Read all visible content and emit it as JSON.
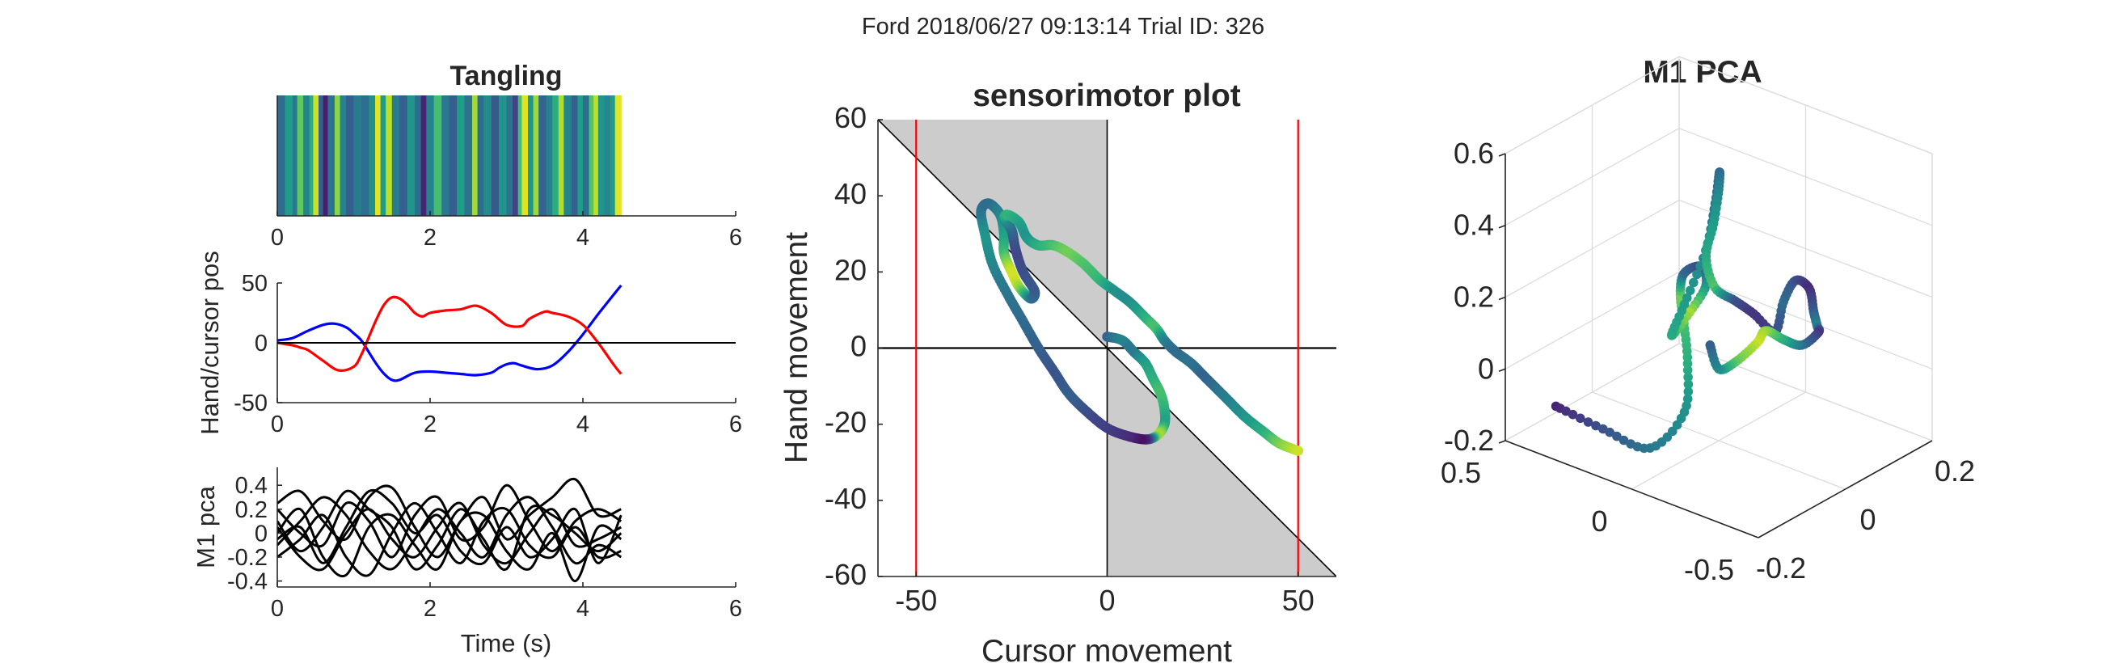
{
  "figure": {
    "suptitle": "Ford 2018/06/27 09:13:14 Trial ID: 326"
  },
  "chart_data": [
    {
      "id": "tangling",
      "type": "heatmap",
      "title": "Tangling",
      "xlabel": "",
      "ylabel": "",
      "xlim": [
        0,
        6
      ],
      "x_ticks": [
        "0",
        "2",
        "4",
        "6"
      ],
      "data_end": 4.5,
      "stripes": [
        {
          "x": 0.0,
          "v": 0.35
        },
        {
          "x": 0.1,
          "v": 0.55
        },
        {
          "x": 0.2,
          "v": 0.4
        },
        {
          "x": 0.26,
          "v": 0.75
        },
        {
          "x": 0.34,
          "v": 0.45
        },
        {
          "x": 0.42,
          "v": 0.62
        },
        {
          "x": 0.47,
          "v": 0.92
        },
        {
          "x": 0.54,
          "v": 0.3
        },
        {
          "x": 0.6,
          "v": 0.08
        },
        {
          "x": 0.66,
          "v": 0.38
        },
        {
          "x": 0.75,
          "v": 0.82
        },
        {
          "x": 0.82,
          "v": 0.45
        },
        {
          "x": 0.9,
          "v": 0.3
        },
        {
          "x": 1.0,
          "v": 0.42
        },
        {
          "x": 1.1,
          "v": 0.36
        },
        {
          "x": 1.2,
          "v": 0.5
        },
        {
          "x": 1.28,
          "v": 0.96
        },
        {
          "x": 1.35,
          "v": 0.55
        },
        {
          "x": 1.42,
          "v": 0.9
        },
        {
          "x": 1.5,
          "v": 0.42
        },
        {
          "x": 1.6,
          "v": 0.3
        },
        {
          "x": 1.7,
          "v": 0.52
        },
        {
          "x": 1.8,
          "v": 0.35
        },
        {
          "x": 1.88,
          "v": 0.1
        },
        {
          "x": 1.95,
          "v": 0.45
        },
        {
          "x": 2.05,
          "v": 0.7
        },
        {
          "x": 2.15,
          "v": 0.4
        },
        {
          "x": 2.25,
          "v": 0.3
        },
        {
          "x": 2.35,
          "v": 0.55
        },
        {
          "x": 2.45,
          "v": 0.38
        },
        {
          "x": 2.55,
          "v": 0.86
        },
        {
          "x": 2.62,
          "v": 0.35
        },
        {
          "x": 2.7,
          "v": 0.48
        },
        {
          "x": 2.8,
          "v": 0.28
        },
        {
          "x": 2.9,
          "v": 0.52
        },
        {
          "x": 3.0,
          "v": 0.38
        },
        {
          "x": 3.08,
          "v": 0.2
        },
        {
          "x": 3.15,
          "v": 0.7
        },
        {
          "x": 3.2,
          "v": 0.95
        },
        {
          "x": 3.28,
          "v": 0.52
        },
        {
          "x": 3.35,
          "v": 0.85
        },
        {
          "x": 3.42,
          "v": 0.32
        },
        {
          "x": 3.52,
          "v": 0.45
        },
        {
          "x": 3.6,
          "v": 0.62
        },
        {
          "x": 3.68,
          "v": 0.88
        },
        {
          "x": 3.75,
          "v": 0.45
        },
        {
          "x": 3.85,
          "v": 0.3
        },
        {
          "x": 3.93,
          "v": 0.55
        },
        {
          "x": 4.0,
          "v": 0.36
        },
        {
          "x": 4.08,
          "v": 0.72
        },
        {
          "x": 4.14,
          "v": 0.9
        },
        {
          "x": 4.2,
          "v": 0.52
        },
        {
          "x": 4.28,
          "v": 0.46
        },
        {
          "x": 4.36,
          "v": 0.55
        },
        {
          "x": 4.42,
          "v": 0.96
        }
      ]
    },
    {
      "id": "hand-cursor",
      "type": "line",
      "title": "",
      "xlabel": "",
      "ylabel": "Hand/cursor pos",
      "xlim": [
        0,
        6
      ],
      "ylim": [
        -50,
        50
      ],
      "x_ticks": [
        "0",
        "2",
        "4",
        "6"
      ],
      "y_ticks": [
        "-50",
        "0",
        "50"
      ],
      "series": [
        {
          "color": "#0000ff",
          "x": [
            0,
            0.2,
            0.4,
            0.6,
            0.75,
            0.9,
            1.0,
            1.1,
            1.2,
            1.3,
            1.4,
            1.5,
            1.6,
            1.8,
            2.0,
            2.2,
            2.4,
            2.6,
            2.8,
            2.9,
            3.0,
            3.1,
            3.2,
            3.4,
            3.6,
            3.8,
            4.0,
            4.2,
            4.4,
            4.5
          ],
          "y": [
            2,
            4,
            10,
            15,
            16,
            13,
            8,
            2,
            -8,
            -18,
            -26,
            -31,
            -31,
            -25,
            -24,
            -25,
            -26,
            -27,
            -25,
            -21,
            -18,
            -17,
            -19,
            -22,
            -19,
            -8,
            7,
            24,
            40,
            48
          ]
        },
        {
          "color": "#ff0000",
          "x": [
            0,
            0.2,
            0.3,
            0.4,
            0.6,
            0.8,
            1.0,
            1.1,
            1.2,
            1.3,
            1.4,
            1.5,
            1.6,
            1.7,
            1.8,
            1.9,
            2.0,
            2.2,
            2.4,
            2.6,
            2.8,
            3.0,
            3.2,
            3.3,
            3.5,
            3.6,
            3.8,
            4.0,
            4.2,
            4.4,
            4.5
          ],
          "y": [
            0,
            -2,
            -4,
            -6,
            -15,
            -23,
            -20,
            -10,
            5,
            20,
            32,
            38,
            37,
            32,
            25,
            22,
            25,
            27,
            28,
            31,
            25,
            15,
            14,
            20,
            26,
            25,
            22,
            15,
            0,
            -18,
            -26
          ]
        },
        {
          "color": "#000000",
          "x": [
            0,
            6
          ],
          "y": [
            0,
            0
          ]
        }
      ]
    },
    {
      "id": "m1-pca-traces",
      "type": "line",
      "title": "",
      "xlabel": "Time (s)",
      "ylabel": "M1 pca",
      "xlim": [
        0,
        6
      ],
      "ylim": [
        -0.45,
        0.55
      ],
      "x_ticks": [
        "0",
        "2",
        "4",
        "6"
      ],
      "y_ticks": [
        "-0.4",
        "-0.2",
        "0",
        "0.2",
        "0.4"
      ],
      "x": [
        0,
        0.3,
        0.6,
        0.9,
        1.2,
        1.5,
        1.8,
        2.1,
        2.4,
        2.7,
        3.0,
        3.3,
        3.6,
        3.9,
        4.2,
        4.5
      ],
      "series": [
        {
          "color": "#000000",
          "values": [
            0.25,
            0.35,
            0.1,
            -0.05,
            0.3,
            0.38,
            0.05,
            -0.2,
            0.1,
            0.3,
            -0.05,
            0.15,
            0.3,
            0.45,
            0.15,
            0.2
          ]
        },
        {
          "color": "#000000",
          "values": [
            0.05,
            -0.2,
            -0.3,
            0.0,
            0.2,
            -0.05,
            -0.2,
            0.05,
            0.25,
            -0.1,
            -0.25,
            0.0,
            0.2,
            -0.1,
            -0.05,
            0.05
          ]
        },
        {
          "color": "#000000",
          "values": [
            -0.1,
            0.1,
            0.3,
            0.15,
            -0.15,
            -0.3,
            -0.05,
            0.2,
            0.0,
            -0.2,
            0.15,
            0.3,
            0.05,
            -0.25,
            -0.1,
            -0.2
          ]
        },
        {
          "color": "#000000",
          "values": [
            0.2,
            0.0,
            -0.1,
            0.25,
            0.1,
            -0.2,
            0.15,
            0.3,
            -0.05,
            0.05,
            0.4,
            0.1,
            -0.15,
            0.1,
            0.2,
            0.1
          ]
        },
        {
          "color": "#000000",
          "values": [
            -0.2,
            -0.05,
            0.15,
            -0.2,
            -0.35,
            0.0,
            0.25,
            0.0,
            -0.25,
            0.1,
            0.2,
            -0.1,
            -0.2,
            0.05,
            -0.2,
            -0.15
          ]
        },
        {
          "color": "#000000",
          "values": [
            0.0,
            0.2,
            -0.2,
            -0.35,
            0.05,
            0.15,
            -0.1,
            -0.3,
            0.1,
            0.15,
            -0.15,
            -0.3,
            0.0,
            -0.4,
            0.05,
            -0.05
          ]
        },
        {
          "color": "#000000",
          "values": [
            0.1,
            -0.15,
            0.05,
            0.35,
            0.2,
            0.05,
            -0.3,
            -0.1,
            0.2,
            -0.05,
            -0.3,
            0.2,
            0.15,
            0.0,
            -0.15,
            0.0
          ]
        },
        {
          "color": "#000000",
          "values": [
            -0.05,
            0.05,
            -0.25,
            0.05,
            0.35,
            0.25,
            0.0,
            0.15,
            -0.15,
            -0.25,
            0.05,
            -0.2,
            -0.05,
            0.2,
            -0.25,
            0.15
          ]
        }
      ]
    },
    {
      "id": "sensorimotor",
      "type": "scatter",
      "title": "sensorimotor plot",
      "xlabel": "Cursor movement",
      "ylabel": "Hand movement",
      "xlim": [
        -60,
        60
      ],
      "ylim": [
        -60,
        60
      ],
      "x_ticks": [
        "-50",
        "0",
        "50"
      ],
      "y_ticks": [
        "-60",
        "-40",
        "-20",
        "0",
        "20",
        "40",
        "60"
      ],
      "shading": "gray",
      "vlines_red": [
        -50,
        50
      ],
      "trajectory": [
        {
          "x": 0,
          "y": 3,
          "v": 0.3
        },
        {
          "x": 4,
          "y": 2,
          "v": 0.45
        },
        {
          "x": 7,
          "y": -1,
          "v": 0.4
        },
        {
          "x": 10,
          "y": -4,
          "v": 0.55
        },
        {
          "x": 12,
          "y": -8,
          "v": 0.62
        },
        {
          "x": 14,
          "y": -12,
          "v": 0.7
        },
        {
          "x": 15,
          "y": -16,
          "v": 0.65
        },
        {
          "x": 15,
          "y": -20,
          "v": 0.58
        },
        {
          "x": 13,
          "y": -23,
          "v": 0.85
        },
        {
          "x": 10,
          "y": -24,
          "v": 0.1
        },
        {
          "x": 5,
          "y": -23,
          "v": 0.12
        },
        {
          "x": 0,
          "y": -21,
          "v": 0.18
        },
        {
          "x": -5,
          "y": -17,
          "v": 0.22
        },
        {
          "x": -10,
          "y": -12,
          "v": 0.3
        },
        {
          "x": -14,
          "y": -6,
          "v": 0.26
        },
        {
          "x": -18,
          "y": 0,
          "v": 0.3
        },
        {
          "x": -22,
          "y": 7,
          "v": 0.34
        },
        {
          "x": -26,
          "y": 14,
          "v": 0.38
        },
        {
          "x": -30,
          "y": 22,
          "v": 0.45
        },
        {
          "x": -32,
          "y": 30,
          "v": 0.52
        },
        {
          "x": -33,
          "y": 36,
          "v": 0.4
        },
        {
          "x": -31,
          "y": 38,
          "v": 0.35
        },
        {
          "x": -28,
          "y": 35,
          "v": 0.45
        },
        {
          "x": -27,
          "y": 30,
          "v": 0.55
        },
        {
          "x": -27,
          "y": 25,
          "v": 0.68
        },
        {
          "x": -25,
          "y": 20,
          "v": 0.92
        },
        {
          "x": -23,
          "y": 16,
          "v": 0.85
        },
        {
          "x": -20,
          "y": 13,
          "v": 0.42
        },
        {
          "x": -19,
          "y": 15,
          "v": 0.3
        },
        {
          "x": -22,
          "y": 20,
          "v": 0.25
        },
        {
          "x": -24,
          "y": 26,
          "v": 0.22
        },
        {
          "x": -25,
          "y": 31,
          "v": 0.32
        },
        {
          "x": -27,
          "y": 34,
          "v": 0.5
        },
        {
          "x": -26,
          "y": 35,
          "v": 0.65
        },
        {
          "x": -23,
          "y": 33,
          "v": 0.58
        },
        {
          "x": -21,
          "y": 29,
          "v": 0.52
        },
        {
          "x": -18,
          "y": 27,
          "v": 0.62
        },
        {
          "x": -14,
          "y": 27,
          "v": 0.7
        },
        {
          "x": -10,
          "y": 25,
          "v": 0.78
        },
        {
          "x": -6,
          "y": 22,
          "v": 0.72
        },
        {
          "x": -2,
          "y": 18,
          "v": 0.66
        },
        {
          "x": 2,
          "y": 15,
          "v": 0.52
        },
        {
          "x": 6,
          "y": 12,
          "v": 0.5
        },
        {
          "x": 10,
          "y": 8,
          "v": 0.62
        },
        {
          "x": 13,
          "y": 5,
          "v": 0.7
        },
        {
          "x": 15,
          "y": 2,
          "v": 0.46
        },
        {
          "x": 18,
          "y": -1,
          "v": 0.35
        },
        {
          "x": 22,
          "y": -4,
          "v": 0.38
        },
        {
          "x": 26,
          "y": -8,
          "v": 0.32
        },
        {
          "x": 31,
          "y": -13,
          "v": 0.42
        },
        {
          "x": 36,
          "y": -18,
          "v": 0.52
        },
        {
          "x": 41,
          "y": -22,
          "v": 0.62
        },
        {
          "x": 45,
          "y": -25,
          "v": 0.78
        },
        {
          "x": 50,
          "y": -27,
          "v": 0.92
        }
      ]
    },
    {
      "id": "m1-pca-3d",
      "type": "scatter",
      "title": "M1 PCA",
      "xlabel": "",
      "ylabel": "",
      "xlim": [
        -0.2,
        0.2
      ],
      "ylim": [
        -0.5,
        0.5
      ],
      "zlim": [
        -0.2,
        0.6
      ],
      "x_ticks": [
        "-0.2",
        "0",
        "0.2"
      ],
      "y_ticks": [
        "-0.5",
        "0",
        "0.5"
      ],
      "z_ticks": [
        "-0.2",
        "0",
        "0.2",
        "0.4",
        "0.6"
      ],
      "trajectory": [
        {
          "x": -0.2,
          "y": 0.3,
          "z": -0.05,
          "v": 0.1
        },
        {
          "x": -0.15,
          "y": 0.2,
          "z": -0.12,
          "v": 0.25
        },
        {
          "x": -0.1,
          "y": 0.1,
          "z": -0.18,
          "v": 0.4
        },
        {
          "x": -0.05,
          "y": 0.05,
          "z": -0.1,
          "v": 0.5
        },
        {
          "x": -0.06,
          "y": 0.02,
          "z": 0.05,
          "v": 0.62
        },
        {
          "x": -0.08,
          "y": 0.0,
          "z": 0.18,
          "v": 0.7
        },
        {
          "x": -0.1,
          "y": -0.02,
          "z": 0.28,
          "v": 0.78
        },
        {
          "x": -0.08,
          "y": 0.0,
          "z": 0.32,
          "v": 0.35
        },
        {
          "x": -0.03,
          "y": 0.02,
          "z": 0.3,
          "v": 0.2
        },
        {
          "x": 0.0,
          "y": 0.05,
          "z": 0.22,
          "v": 0.5
        },
        {
          "x": -0.02,
          "y": 0.08,
          "z": 0.15,
          "v": 0.86
        },
        {
          "x": -0.05,
          "y": 0.1,
          "z": 0.1,
          "v": 0.62
        },
        {
          "x": -0.05,
          "y": 0.05,
          "z": 0.2,
          "v": 0.55
        },
        {
          "x": -0.03,
          "y": 0.0,
          "z": 0.35,
          "v": 0.45
        },
        {
          "x": -0.02,
          "y": -0.02,
          "z": 0.48,
          "v": 0.4
        },
        {
          "x": -0.01,
          "y": -0.02,
          "z": 0.56,
          "v": 0.3
        },
        {
          "x": 0.0,
          "y": 0.0,
          "z": 0.5,
          "v": 0.45
        },
        {
          "x": 0.0,
          "y": 0.02,
          "z": 0.4,
          "v": 0.55
        },
        {
          "x": 0.0,
          "y": 0.05,
          "z": 0.3,
          "v": 0.6
        },
        {
          "x": 0.02,
          "y": 0.05,
          "z": 0.2,
          "v": 0.72
        },
        {
          "x": 0.05,
          "y": 0.02,
          "z": 0.15,
          "v": 0.25
        },
        {
          "x": 0.08,
          "y": 0.0,
          "z": 0.1,
          "v": 0.15
        },
        {
          "x": 0.1,
          "y": -0.05,
          "z": 0.05,
          "v": 0.2
        },
        {
          "x": 0.12,
          "y": -0.05,
          "z": 0.12,
          "v": 0.35
        },
        {
          "x": 0.13,
          "y": -0.08,
          "z": 0.18,
          "v": 0.25
        },
        {
          "x": 0.15,
          "y": -0.1,
          "z": 0.15,
          "v": 0.12
        },
        {
          "x": 0.16,
          "y": -0.1,
          "z": 0.08,
          "v": 0.28
        },
        {
          "x": 0.18,
          "y": -0.08,
          "z": 0.02,
          "v": 0.45
        },
        {
          "x": 0.2,
          "y": -0.05,
          "z": -0.02,
          "v": 0.15
        },
        {
          "x": 0.18,
          "y": -0.02,
          "z": -0.05,
          "v": 0.35
        },
        {
          "x": 0.15,
          "y": 0.0,
          "z": -0.02,
          "v": 0.6
        },
        {
          "x": 0.12,
          "y": 0.02,
          "z": 0.02,
          "v": 0.82
        },
        {
          "x": 0.1,
          "y": 0.02,
          "z": 0.0,
          "v": 0.92
        },
        {
          "x": 0.05,
          "y": 0.02,
          "z": -0.02,
          "v": 0.75
        },
        {
          "x": 0.0,
          "y": 0.0,
          "z": 0.0,
          "v": 0.5
        },
        {
          "x": -0.02,
          "y": 0.0,
          "z": 0.08,
          "v": 0.3
        }
      ]
    }
  ]
}
